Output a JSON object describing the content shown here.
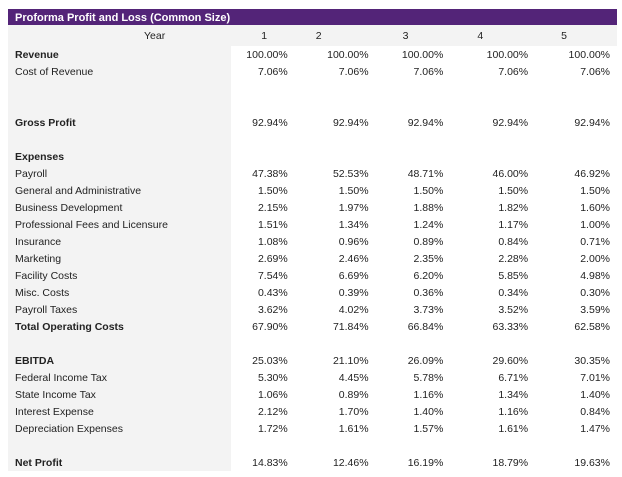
{
  "title": "Proforma Profit and Loss (Common Size)",
  "year_label": "Year",
  "years": [
    "1",
    "2",
    "3",
    "4",
    "5"
  ],
  "rows": [
    {
      "label": "Revenue",
      "bold": true,
      "values": [
        "100.00%",
        "100.00%",
        "100.00%",
        "100.00%",
        "100.00%"
      ]
    },
    {
      "label": "Cost of Revenue",
      "values": [
        "7.06%",
        "7.06%",
        "7.06%",
        "7.06%",
        "7.06%"
      ]
    },
    {
      "blank": true
    },
    {
      "blank": true
    },
    {
      "label": "Gross Profit",
      "bold": true,
      "values": [
        "92.94%",
        "92.94%",
        "92.94%",
        "92.94%",
        "92.94%"
      ]
    },
    {
      "blank": true
    },
    {
      "label": "Expenses",
      "bold": true,
      "values": []
    },
    {
      "label": "Payroll",
      "values": [
        "47.38%",
        "52.53%",
        "48.71%",
        "46.00%",
        "46.92%"
      ]
    },
    {
      "label": "General and Administrative",
      "values": [
        "1.50%",
        "1.50%",
        "1.50%",
        "1.50%",
        "1.50%"
      ]
    },
    {
      "label": "Business Development",
      "values": [
        "2.15%",
        "1.97%",
        "1.88%",
        "1.82%",
        "1.60%"
      ]
    },
    {
      "label": "Professional Fees and Licensure",
      "values": [
        "1.51%",
        "1.34%",
        "1.24%",
        "1.17%",
        "1.00%"
      ]
    },
    {
      "label": "Insurance",
      "values": [
        "1.08%",
        "0.96%",
        "0.89%",
        "0.84%",
        "0.71%"
      ]
    },
    {
      "label": "Marketing",
      "values": [
        "2.69%",
        "2.46%",
        "2.35%",
        "2.28%",
        "2.00%"
      ]
    },
    {
      "label": "Facility Costs",
      "values": [
        "7.54%",
        "6.69%",
        "6.20%",
        "5.85%",
        "4.98%"
      ]
    },
    {
      "label": "Misc. Costs",
      "values": [
        "0.43%",
        "0.39%",
        "0.36%",
        "0.34%",
        "0.30%"
      ]
    },
    {
      "label": "Payroll Taxes",
      "values": [
        "3.62%",
        "4.02%",
        "3.73%",
        "3.52%",
        "3.59%"
      ]
    },
    {
      "label": "Total Operating Costs",
      "bold": true,
      "values": [
        "67.90%",
        "71.84%",
        "66.84%",
        "63.33%",
        "62.58%"
      ]
    },
    {
      "blank": true
    },
    {
      "label": "EBITDA",
      "bold": true,
      "values": [
        "25.03%",
        "21.10%",
        "26.09%",
        "29.60%",
        "30.35%"
      ]
    },
    {
      "label": "Federal Income Tax",
      "values": [
        "5.30%",
        "4.45%",
        "5.78%",
        "6.71%",
        "7.01%"
      ]
    },
    {
      "label": "State Income Tax",
      "values": [
        "1.06%",
        "0.89%",
        "1.16%",
        "1.34%",
        "1.40%"
      ]
    },
    {
      "label": "Interest Expense",
      "values": [
        "2.12%",
        "1.70%",
        "1.40%",
        "1.16%",
        "0.84%"
      ]
    },
    {
      "label": "Depreciation Expenses",
      "values": [
        "1.72%",
        "1.61%",
        "1.57%",
        "1.61%",
        "1.47%"
      ]
    },
    {
      "blank": true
    },
    {
      "label": "Net Profit",
      "bold": true,
      "values": [
        "14.83%",
        "12.46%",
        "16.19%",
        "18.79%",
        "19.63%"
      ]
    }
  ]
}
